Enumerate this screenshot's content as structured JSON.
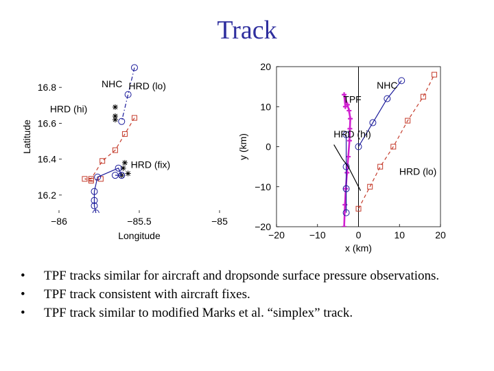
{
  "slide": {
    "title": "Track",
    "bullets": [
      "TPF tracks similar for aircraft and dropsonde surface pressure observations.",
      "TPF track consistent with aircraft fixes.",
      "TPF track similar to modified Marks et al. “simplex” track."
    ],
    "bullet_marker": "•"
  },
  "colors": {
    "title": "#2f2f9e",
    "nhc": "#1a1a9a",
    "hrd": "#c43a2a",
    "tpf": "#d020d0",
    "axis": "#000000"
  },
  "chart_data": [
    {
      "type": "scatter",
      "xlabel": "Longitude",
      "ylabel": "Latitude",
      "xlim": [
        -86,
        -85
      ],
      "ylim": [
        16.1,
        16.95
      ],
      "xticks": [
        -86,
        -85.5,
        -85
      ],
      "xtick_labels": [
        "−86",
        "−85.5",
        "−85"
      ],
      "yticks": [
        16.2,
        16.4,
        16.6,
        16.8
      ],
      "ytick_labels": [
        "16.2",
        "16.4",
        "16.6",
        "16.8"
      ],
      "grid": false,
      "annotations": [
        {
          "text": "NHC",
          "x": -85.67,
          "y": 16.8
        },
        {
          "text": "HRD (lo)",
          "x": -85.45,
          "y": 16.79
        },
        {
          "text": "HRD (hi)",
          "x": -85.94,
          "y": 16.66
        },
        {
          "text": "HRD (fix)",
          "x": -85.43,
          "y": 16.35
        }
      ],
      "series": [
        {
          "marker": "circle",
          "color": "#1a1a9a",
          "line": "dashdot",
          "x": [
            -85.53,
            -85.57,
            -85.61
          ],
          "y": [
            16.91,
            16.76,
            16.61
          ]
        },
        {
          "marker": "square",
          "color": "#c43a2a",
          "line": "dashed",
          "x": [
            -85.53,
            -85.59,
            -85.65,
            -85.73,
            -85.8,
            -85.84,
            -85.8,
            -85.74
          ],
          "y": [
            16.63,
            16.54,
            16.45,
            16.39,
            16.29,
            16.29,
            16.28,
            16.29
          ]
        },
        {
          "marker": "star",
          "color": "#000000",
          "line": "none",
          "x": [
            -85.65,
            -85.65,
            -85.65,
            -85.59,
            -85.6,
            -85.61,
            -85.57
          ],
          "y": [
            16.69,
            16.64,
            16.62,
            16.38,
            16.35,
            16.31,
            16.32
          ]
        },
        {
          "marker": "circle",
          "color": "#1a1a9a",
          "line": "solid",
          "x": [
            -85.65,
            -85.61,
            -85.63,
            -85.76,
            -85.78,
            -85.78,
            -85.78,
            -85.77
          ],
          "y": [
            16.31,
            16.31,
            16.35,
            16.3,
            16.22,
            16.17,
            16.14,
            16.1
          ]
        }
      ]
    },
    {
      "type": "scatter",
      "xlabel": "x (km)",
      "ylabel": "y (km)",
      "xlim": [
        -20,
        20
      ],
      "ylim": [
        -20,
        20
      ],
      "xticks": [
        -20,
        -10,
        0,
        10,
        20
      ],
      "xtick_labels": [
        "−20",
        "−10",
        "0",
        "10",
        "20"
      ],
      "yticks": [
        -20,
        -10,
        0,
        10,
        20
      ],
      "ytick_labels": [
        "−20",
        "−10",
        "0",
        "10",
        "20"
      ],
      "grid": false,
      "annotations": [
        {
          "text": "NHC",
          "x": 7,
          "y": 14.5
        },
        {
          "text": "TPF",
          "x": -1.5,
          "y": 11
        },
        {
          "text": "HRD (hi)",
          "x": -1.5,
          "y": 2.3
        },
        {
          "text": "HRD (lo)",
          "x": 14.5,
          "y": -7
        }
      ],
      "series": [
        {
          "name": "NHC",
          "marker": "circle",
          "color": "#1a1a9a",
          "line": "solid",
          "x": [
            0,
            3.5,
            7,
            10.5
          ],
          "y": [
            0,
            6,
            12,
            16.5
          ]
        },
        {
          "name": "HRD (lo)",
          "marker": "square",
          "color": "#c43a2a",
          "line": "dashed",
          "x": [
            0,
            2.8,
            5.3,
            8.5,
            12,
            15.8,
            18.5
          ],
          "y": [
            -15.5,
            -10,
            -5,
            0,
            6.5,
            12.5,
            18
          ]
        },
        {
          "name": "TPF",
          "marker": "plus",
          "color": "#d020d0",
          "line": "solid",
          "x": [
            -3.5,
            -3.3,
            -3.1,
            -2.8,
            -2.5,
            -2.2,
            -2.1,
            -2.0,
            -2.3,
            -2.7,
            -3.5,
            -3.2
          ],
          "y": [
            -20,
            -14.5,
            -10.5,
            -6.5,
            -2.5,
            1.5,
            4.5,
            7,
            9,
            10.5,
            13,
            10
          ]
        },
        {
          "name": "HRD (hi)",
          "marker": "circle",
          "color": "#1a1a9a",
          "line": "solid",
          "x": [
            -3.0,
            -3.0,
            -3.0,
            -3.0
          ],
          "y": [
            -5,
            -10.5,
            -16.5,
            3
          ]
        },
        {
          "name": "aircraft",
          "marker": "none",
          "color": "#000000",
          "line": "solid",
          "x": [
            -6.0,
            -4.0,
            -2.5,
            -1.0,
            0.5
          ],
          "y": [
            0.5,
            -3,
            -5,
            -8,
            -11
          ]
        }
      ]
    }
  ]
}
